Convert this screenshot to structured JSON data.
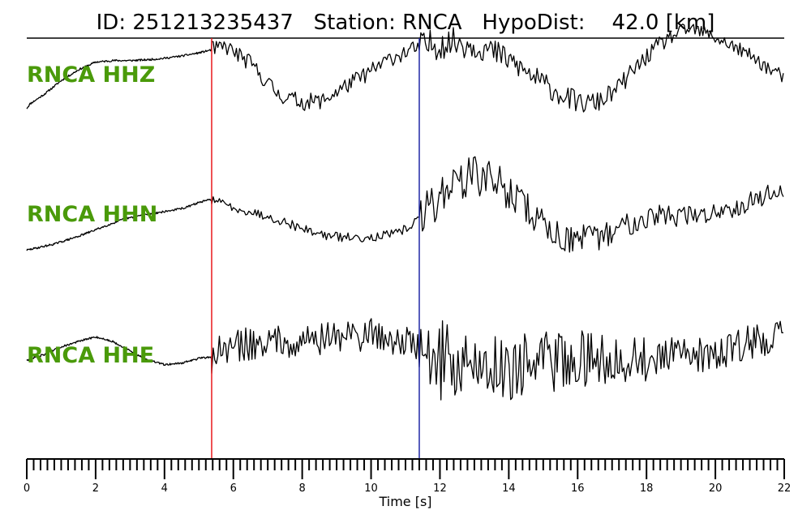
{
  "chart_data": {
    "type": "line",
    "title": {
      "id_label": "ID:",
      "id_value": "251213235437",
      "station_label": "Station:",
      "station_value": "RNCA",
      "dist_label": "HypoDist:",
      "dist_value": "42.0",
      "dist_unit": "[km]"
    },
    "xlabel": "Time [s]",
    "xlim": [
      0,
      22
    ],
    "x_ticks": [
      0,
      2,
      4,
      6,
      8,
      10,
      12,
      14,
      16,
      18,
      20,
      22
    ],
    "minor_tick_step": 0.2,
    "picks": [
      {
        "name": "P",
        "time": 5.37,
        "color": "#e8191c"
      },
      {
        "name": "S",
        "time": 11.4,
        "color": "#1f27a6"
      }
    ],
    "label_color": "#4a9a0a",
    "trace_color": "#000000",
    "series": [
      {
        "name": "RNCA HHZ",
        "pre": [
          [
            0,
            0.12
          ],
          [
            0.1,
            0.18
          ],
          [
            0.5,
            0.3
          ],
          [
            1.0,
            0.48
          ],
          [
            1.5,
            0.62
          ],
          [
            2.0,
            0.72
          ],
          [
            2.5,
            0.74
          ],
          [
            3.0,
            0.74
          ],
          [
            3.5,
            0.75
          ],
          [
            4.0,
            0.77
          ],
          [
            4.5,
            0.8
          ],
          [
            5.0,
            0.84
          ],
          [
            5.37,
            0.88
          ]
        ],
        "wave": [
          [
            5.37,
            0.88
          ],
          [
            5.8,
            0.92
          ],
          [
            6.5,
            0.7
          ],
          [
            7.3,
            0.3
          ],
          [
            8.0,
            0.2
          ],
          [
            8.6,
            0.22
          ],
          [
            9.3,
            0.42
          ],
          [
            10.0,
            0.6
          ],
          [
            10.6,
            0.78
          ],
          [
            11.2,
            0.88
          ],
          [
            11.8,
            0.95
          ],
          [
            12.5,
            0.98
          ],
          [
            13.2,
            0.92
          ],
          [
            14.0,
            0.75
          ],
          [
            14.8,
            0.5
          ],
          [
            15.5,
            0.3
          ],
          [
            16.1,
            0.18
          ],
          [
            16.6,
            0.2
          ],
          [
            17.1,
            0.35
          ],
          [
            17.7,
            0.65
          ],
          [
            18.3,
            0.92
          ],
          [
            18.9,
            1.1
          ],
          [
            19.3,
            1.15
          ],
          [
            19.8,
            1.08
          ],
          [
            20.4,
            0.95
          ],
          [
            21.1,
            0.78
          ],
          [
            21.6,
            0.62
          ],
          [
            22.0,
            0.52
          ]
        ],
        "noise_amp": 0.11,
        "s_noise_amp": 0.21,
        "seed": 11
      },
      {
        "name": "RNCA HHN",
        "pre": [
          [
            0,
            0.1
          ],
          [
            0.2,
            0.12
          ],
          [
            0.8,
            0.18
          ],
          [
            1.5,
            0.28
          ],
          [
            2.2,
            0.4
          ],
          [
            2.8,
            0.5
          ],
          [
            3.4,
            0.56
          ],
          [
            4.0,
            0.6
          ],
          [
            4.6,
            0.65
          ],
          [
            5.0,
            0.72
          ],
          [
            5.37,
            0.76
          ]
        ],
        "wave": [
          [
            5.37,
            0.76
          ],
          [
            5.8,
            0.68
          ],
          [
            6.5,
            0.6
          ],
          [
            7.3,
            0.5
          ],
          [
            8.0,
            0.38
          ],
          [
            8.8,
            0.28
          ],
          [
            9.5,
            0.26
          ],
          [
            10.2,
            0.28
          ],
          [
            10.8,
            0.32
          ],
          [
            11.4,
            0.5
          ],
          [
            11.8,
            0.72
          ],
          [
            12.4,
            0.98
          ],
          [
            13.0,
            1.08
          ],
          [
            13.6,
            1.0
          ],
          [
            14.2,
            0.78
          ],
          [
            14.8,
            0.52
          ],
          [
            15.4,
            0.3
          ],
          [
            16.0,
            0.22
          ],
          [
            16.6,
            0.26
          ],
          [
            17.2,
            0.38
          ],
          [
            17.8,
            0.52
          ],
          [
            18.4,
            0.56
          ],
          [
            19.0,
            0.54
          ],
          [
            19.6,
            0.55
          ],
          [
            20.2,
            0.62
          ],
          [
            20.8,
            0.7
          ],
          [
            21.4,
            0.8
          ],
          [
            22.0,
            0.9
          ]
        ],
        "noise_amp": 0.06,
        "s_noise_amp": 0.3,
        "seed": 29
      },
      {
        "name": "RNCA HHE",
        "pre": [
          [
            0,
            0.38
          ],
          [
            0.5,
            0.45
          ],
          [
            1.0,
            0.55
          ],
          [
            1.5,
            0.62
          ],
          [
            2.0,
            0.68
          ],
          [
            2.5,
            0.62
          ],
          [
            3.0,
            0.5
          ],
          [
            3.5,
            0.38
          ],
          [
            4.0,
            0.32
          ],
          [
            4.5,
            0.34
          ],
          [
            5.0,
            0.4
          ],
          [
            5.37,
            0.42
          ]
        ],
        "wave": [
          [
            5.37,
            0.42
          ],
          [
            6.0,
            0.56
          ],
          [
            7.0,
            0.62
          ],
          [
            8.0,
            0.64
          ],
          [
            9.0,
            0.68
          ],
          [
            10.0,
            0.72
          ],
          [
            11.0,
            0.62
          ],
          [
            11.4,
            0.5
          ],
          [
            12.0,
            0.38
          ],
          [
            13.0,
            0.3
          ],
          [
            14.0,
            0.3
          ],
          [
            15.0,
            0.35
          ],
          [
            16.0,
            0.4
          ],
          [
            17.0,
            0.4
          ],
          [
            18.0,
            0.38
          ],
          [
            19.0,
            0.42
          ],
          [
            20.0,
            0.48
          ],
          [
            21.0,
            0.6
          ],
          [
            22.0,
            0.75
          ]
        ],
        "noise_amp": 0.22,
        "s_noise_amp": 0.55,
        "seed": 47
      }
    ]
  }
}
